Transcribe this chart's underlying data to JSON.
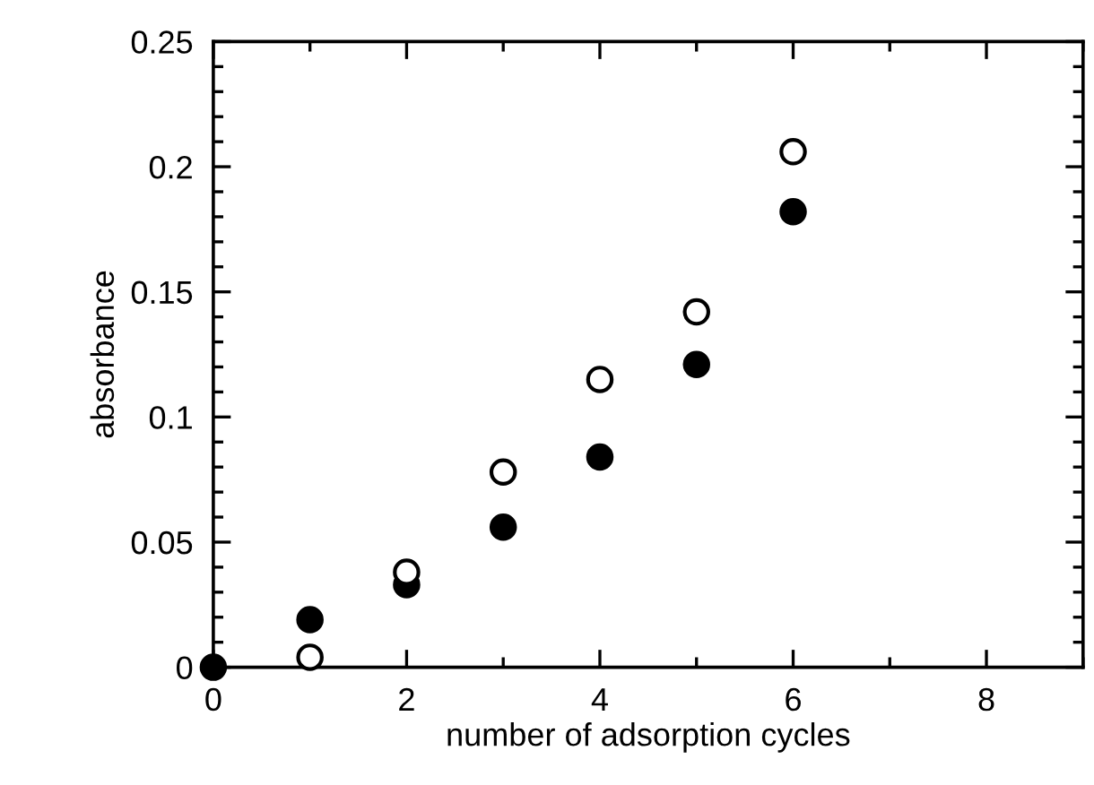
{
  "chart_data": {
    "type": "scatter",
    "xlabel": "number of adsorption cycles",
    "ylabel": "absorbance",
    "xlim": [
      0,
      9
    ],
    "xticks": [
      0,
      2,
      4,
      6,
      8
    ],
    "ylim": [
      0,
      0.25
    ],
    "yticks": [
      0,
      0.05,
      0.1,
      0.15,
      0.2,
      0.25
    ],
    "grid": false,
    "legend": false,
    "marker": "circle",
    "series": [
      {
        "color": "#000000",
        "x": [
          0,
          1,
          2,
          3,
          4,
          5,
          6
        ],
        "values": [
          0,
          0.019,
          0.033,
          0.056,
          0.084,
          0.121,
          0.182
        ]
      },
      {
        "color": "#ffffff",
        "x": [
          1,
          2,
          3,
          4,
          5,
          6
        ],
        "values": [
          0.004,
          0.038,
          0.078,
          0.115,
          0.142,
          0.206
        ]
      }
    ]
  }
}
